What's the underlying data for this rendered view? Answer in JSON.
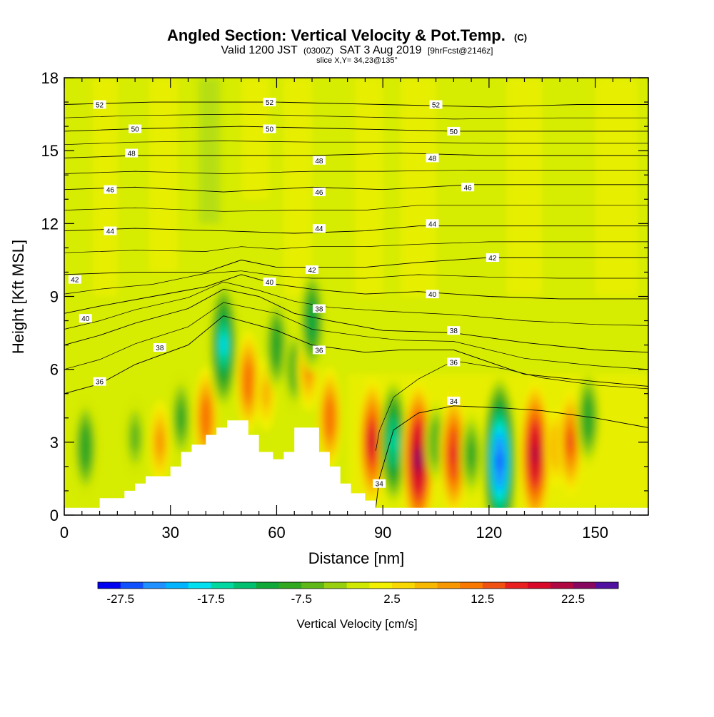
{
  "chart_data": {
    "type": "heatmap",
    "title": "Angled Section: Vertical Velocity & Pot.Temp.",
    "title_suffix": "(C)",
    "subtitle_parts": [
      "Valid 1200 JST",
      "(0300Z)",
      "SAT 3 Aug 2019",
      "[9hrFcst@2146z]"
    ],
    "subtitle2": "slice X,Y= 34,23@135°",
    "xlabel": "Distance [nm]",
    "ylabel": "Height [Kft MSL]",
    "xlim": [
      0,
      165
    ],
    "ylim": [
      0,
      18
    ],
    "x_ticks": [
      "0",
      "30",
      "60",
      "90",
      "120",
      "150"
    ],
    "y_ticks": [
      "0",
      "3",
      "6",
      "9",
      "12",
      "15",
      "18"
    ],
    "colorbar": {
      "title": "Vertical Velocity [cm/s]",
      "labels": [
        "-27.5",
        "-17.5",
        "-7.5",
        "2.5",
        "12.5",
        "22.5"
      ],
      "colors": [
        "#0000f0",
        "#1050ff",
        "#1e90ff",
        "#00b4ff",
        "#00e0f0",
        "#00d8a0",
        "#00c070",
        "#10a838",
        "#30a820",
        "#60b818",
        "#98d010",
        "#d0e800",
        "#f0f000",
        "#f8d800",
        "#f8b800",
        "#f89800",
        "#f87800",
        "#f05010",
        "#e82020",
        "#d80828",
        "#b00840",
        "#880860",
        "#5010a0"
      ]
    },
    "vertical_velocity_cells": [
      {
        "x": 6,
        "y": 2.8,
        "v": -10
      },
      {
        "x": 20,
        "y": 3.2,
        "v": -6
      },
      {
        "x": 27,
        "y": 3.0,
        "v": 8
      },
      {
        "x": 33,
        "y": 4.0,
        "v": -8
      },
      {
        "x": 40,
        "y": 4.0,
        "v": 12
      },
      {
        "x": 45,
        "y": 7.0,
        "v": -18
      },
      {
        "x": 52,
        "y": 5.5,
        "v": 12
      },
      {
        "x": 57,
        "y": 5.0,
        "v": 6
      },
      {
        "x": 60,
        "y": 7.0,
        "v": -10
      },
      {
        "x": 65,
        "y": 6.0,
        "v": -7
      },
      {
        "x": 69,
        "y": 6.0,
        "v": 8
      },
      {
        "x": 70,
        "y": 8.0,
        "v": -12
      },
      {
        "x": 75,
        "y": 4.0,
        "v": 12
      },
      {
        "x": 87,
        "y": 3.0,
        "v": 18
      },
      {
        "x": 93,
        "y": 3.0,
        "v": -17
      },
      {
        "x": 100,
        "y": 2.3,
        "v": 24
      },
      {
        "x": 105,
        "y": 3.0,
        "v": -7
      },
      {
        "x": 110,
        "y": 2.5,
        "v": 17
      },
      {
        "x": 115,
        "y": 2.5,
        "v": -8
      },
      {
        "x": 123,
        "y": 2.2,
        "v": -27
      },
      {
        "x": 133,
        "y": 2.5,
        "v": 22
      },
      {
        "x": 139,
        "y": 2.8,
        "v": 7
      },
      {
        "x": 143,
        "y": 3.0,
        "v": 13
      },
      {
        "x": 148,
        "y": 4.0,
        "v": -10
      }
    ],
    "theta_isentropes": [
      {
        "label": "34",
        "pts": [
          [
            88,
            0.3
          ],
          [
            89,
            1.5
          ],
          [
            93,
            3.5
          ],
          [
            100,
            4.2
          ],
          [
            110,
            4.5
          ],
          [
            125,
            4.4
          ],
          [
            135,
            4.3
          ],
          [
            150,
            4.0
          ],
          [
            165,
            3.6
          ]
        ]
      },
      {
        "label": "36",
        "pts": [
          [
            0,
            5.0
          ],
          [
            10,
            5.4
          ],
          [
            20,
            6.2
          ],
          [
            35,
            7.0
          ],
          [
            45,
            8.2
          ],
          [
            60,
            7.6
          ],
          [
            70,
            7.0
          ],
          [
            85,
            6.7
          ],
          [
            95,
            6.8
          ],
          [
            110,
            6.8
          ],
          [
            130,
            5.8
          ],
          [
            150,
            5.5
          ],
          [
            165,
            5.3
          ]
        ]
      },
      {
        "label": "38",
        "pts": [
          [
            0,
            7.0
          ],
          [
            10,
            7.4
          ],
          [
            20,
            7.9
          ],
          [
            35,
            8.5
          ],
          [
            45,
            9.3
          ],
          [
            55,
            9.0
          ],
          [
            65,
            8.3
          ],
          [
            75,
            8.0
          ],
          [
            90,
            7.6
          ],
          [
            110,
            7.5
          ],
          [
            130,
            7.1
          ],
          [
            150,
            6.8
          ],
          [
            165,
            6.7
          ]
        ]
      },
      {
        "label": "40",
        "pts": [
          [
            0,
            8.3
          ],
          [
            10,
            8.6
          ],
          [
            25,
            9.0
          ],
          [
            40,
            9.4
          ],
          [
            50,
            9.9
          ],
          [
            60,
            9.5
          ],
          [
            70,
            9.3
          ],
          [
            85,
            9.1
          ],
          [
            100,
            9.2
          ],
          [
            120,
            9.0
          ],
          [
            140,
            8.9
          ],
          [
            165,
            8.9
          ]
        ]
      },
      {
        "label": "42",
        "pts": [
          [
            0,
            9.9
          ],
          [
            20,
            10.0
          ],
          [
            40,
            10.0
          ],
          [
            50,
            10.5
          ],
          [
            60,
            10.2
          ],
          [
            70,
            10.2
          ],
          [
            85,
            10.2
          ],
          [
            100,
            10.4
          ],
          [
            120,
            10.6
          ],
          [
            140,
            10.6
          ],
          [
            165,
            10.6
          ]
        ]
      },
      {
        "label": "44",
        "pts": [
          [
            0,
            11.7
          ],
          [
            20,
            11.8
          ],
          [
            45,
            11.7
          ],
          [
            65,
            11.6
          ],
          [
            85,
            11.7
          ],
          [
            100,
            11.9
          ],
          [
            120,
            11.9
          ],
          [
            140,
            11.9
          ],
          [
            165,
            11.9
          ]
        ]
      },
      {
        "label": "46",
        "pts": [
          [
            0,
            13.4
          ],
          [
            20,
            13.5
          ],
          [
            45,
            13.3
          ],
          [
            70,
            13.5
          ],
          [
            90,
            13.4
          ],
          [
            115,
            13.6
          ],
          [
            140,
            13.6
          ],
          [
            165,
            13.6
          ]
        ]
      },
      {
        "label": "48",
        "pts": [
          [
            0,
            14.7
          ],
          [
            20,
            14.8
          ],
          [
            45,
            14.8
          ],
          [
            70,
            14.8
          ],
          [
            95,
            14.9
          ],
          [
            120,
            14.8
          ],
          [
            145,
            14.8
          ],
          [
            165,
            14.8
          ]
        ]
      },
      {
        "label": "50",
        "pts": [
          [
            0,
            15.8
          ],
          [
            20,
            15.9
          ],
          [
            50,
            16.0
          ],
          [
            80,
            15.9
          ],
          [
            110,
            15.8
          ],
          [
            140,
            15.8
          ],
          [
            165,
            15.8
          ]
        ]
      },
      {
        "label": "52",
        "pts": [
          [
            0,
            16.9
          ],
          [
            25,
            17.0
          ],
          [
            60,
            17.0
          ],
          [
            90,
            16.9
          ],
          [
            120,
            16.8
          ],
          [
            145,
            16.9
          ],
          [
            165,
            16.9
          ]
        ]
      }
    ],
    "isentrope_labels": [
      {
        "text": "52",
        "x": 10,
        "y": 16.9
      },
      {
        "text": "52",
        "x": 58,
        "y": 17.0
      },
      {
        "text": "52",
        "x": 105,
        "y": 16.9
      },
      {
        "text": "50",
        "x": 20,
        "y": 15.9
      },
      {
        "text": "50",
        "x": 58,
        "y": 15.9
      },
      {
        "text": "50",
        "x": 110,
        "y": 15.8
      },
      {
        "text": "48",
        "x": 19,
        "y": 14.9
      },
      {
        "text": "48",
        "x": 72,
        "y": 14.6
      },
      {
        "text": "48",
        "x": 104,
        "y": 14.7
      },
      {
        "text": "46",
        "x": 13,
        "y": 13.4
      },
      {
        "text": "46",
        "x": 72,
        "y": 13.3
      },
      {
        "text": "46",
        "x": 114,
        "y": 13.5
      },
      {
        "text": "44",
        "x": 13,
        "y": 11.7
      },
      {
        "text": "44",
        "x": 72,
        "y": 11.8
      },
      {
        "text": "44",
        "x": 104,
        "y": 12.0
      },
      {
        "text": "42",
        "x": 3,
        "y": 9.7
      },
      {
        "text": "42",
        "x": 70,
        "y": 10.1
      },
      {
        "text": "42",
        "x": 121,
        "y": 10.6
      },
      {
        "text": "40",
        "x": 6,
        "y": 8.1
      },
      {
        "text": "40",
        "x": 58,
        "y": 9.6
      },
      {
        "text": "40",
        "x": 104,
        "y": 9.1
      },
      {
        "text": "38",
        "x": 27,
        "y": 6.9
      },
      {
        "text": "38",
        "x": 72,
        "y": 8.5
      },
      {
        "text": "38",
        "x": 110,
        "y": 7.6
      },
      {
        "text": "36",
        "x": 10,
        "y": 5.5
      },
      {
        "text": "36",
        "x": 72,
        "y": 6.8
      },
      {
        "text": "36",
        "x": 110,
        "y": 6.3
      },
      {
        "text": "34",
        "x": 89,
        "y": 1.3
      },
      {
        "text": "34",
        "x": 110,
        "y": 4.7
      }
    ],
    "terrain": [
      [
        0,
        0.3
      ],
      [
        10,
        0.3
      ],
      [
        10,
        0.7
      ],
      [
        17,
        0.7
      ],
      [
        17,
        1.0
      ],
      [
        20,
        1.0
      ],
      [
        20,
        1.3
      ],
      [
        23,
        1.3
      ],
      [
        23,
        1.6
      ],
      [
        30,
        1.6
      ],
      [
        30,
        2.0
      ],
      [
        33,
        2.0
      ],
      [
        33,
        2.6
      ],
      [
        36,
        2.6
      ],
      [
        36,
        2.9
      ],
      [
        40,
        2.9
      ],
      [
        40,
        3.3
      ],
      [
        43,
        3.3
      ],
      [
        43,
        3.6
      ],
      [
        46,
        3.6
      ],
      [
        46,
        3.9
      ],
      [
        52,
        3.9
      ],
      [
        52,
        3.3
      ],
      [
        55,
        3.3
      ],
      [
        55,
        2.6
      ],
      [
        59,
        2.6
      ],
      [
        59,
        2.3
      ],
      [
        62,
        2.3
      ],
      [
        62,
        2.6
      ],
      [
        65,
        2.6
      ],
      [
        65,
        3.6
      ],
      [
        72,
        3.6
      ],
      [
        72,
        2.6
      ],
      [
        75,
        2.6
      ],
      [
        75,
        2.0
      ],
      [
        78,
        2.0
      ],
      [
        78,
        1.3
      ],
      [
        81,
        1.3
      ],
      [
        81,
        0.9
      ],
      [
        85,
        0.9
      ],
      [
        85,
        0.6
      ],
      [
        88,
        0.6
      ],
      [
        88,
        0.3
      ],
      [
        165,
        0.3
      ]
    ]
  }
}
